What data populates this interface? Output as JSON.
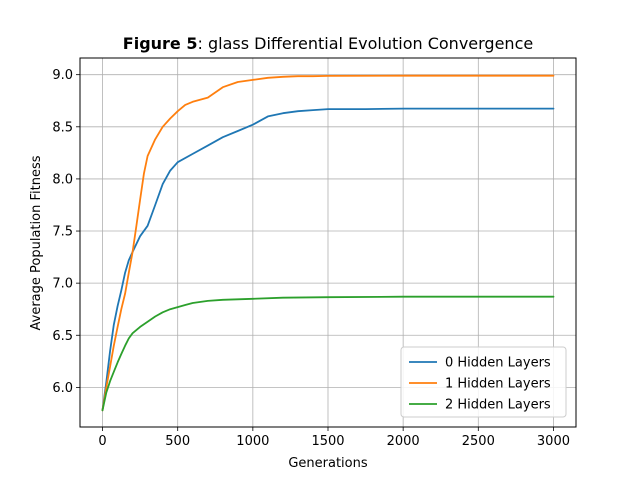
{
  "chart_data": {
    "type": "line",
    "title_bold": "Figure 5",
    "title_rest": ": glass Differential Evolution Convergence",
    "xlabel": "Generations",
    "ylabel": "Average Population Fitness",
    "xlim": [
      -150,
      3150
    ],
    "ylim": [
      5.62,
      9.16
    ],
    "xticks": [
      0,
      500,
      1000,
      1500,
      2000,
      2500,
      3000
    ],
    "yticks": [
      6.0,
      6.5,
      7.0,
      7.5,
      8.0,
      8.5,
      9.0
    ],
    "xtick_labels": [
      "0",
      "500",
      "1000",
      "1500",
      "2000",
      "2500",
      "3000"
    ],
    "ytick_labels": [
      "6.0",
      "6.5",
      "7.0",
      "7.5",
      "8.0",
      "8.5",
      "9.0"
    ],
    "grid": true,
    "legend_position": "lower right",
    "series": [
      {
        "name": "0 Hidden Layers",
        "color": "#1f77b4",
        "x": [
          0,
          25,
          50,
          75,
          100,
          125,
          150,
          175,
          200,
          250,
          300,
          350,
          400,
          450,
          500,
          600,
          700,
          800,
          900,
          1000,
          1100,
          1200,
          1300,
          1400,
          1500,
          1750,
          2000,
          2500,
          3000
        ],
        "y": [
          5.78,
          6.05,
          6.35,
          6.6,
          6.78,
          6.93,
          7.1,
          7.22,
          7.3,
          7.45,
          7.55,
          7.75,
          7.95,
          8.08,
          8.16,
          8.24,
          8.32,
          8.4,
          8.46,
          8.52,
          8.6,
          8.63,
          8.65,
          8.66,
          8.67,
          8.67,
          8.675,
          8.675,
          8.675
        ]
      },
      {
        "name": "1 Hidden Layers",
        "color": "#ff7f0e",
        "x": [
          0,
          25,
          50,
          75,
          100,
          125,
          150,
          175,
          200,
          225,
          250,
          275,
          300,
          350,
          400,
          450,
          500,
          550,
          600,
          700,
          800,
          900,
          1000,
          1100,
          1200,
          1300,
          1400,
          1500,
          2000,
          2500,
          3000
        ],
        "y": [
          5.78,
          6.0,
          6.2,
          6.4,
          6.58,
          6.75,
          6.9,
          7.1,
          7.3,
          7.55,
          7.8,
          8.05,
          8.22,
          8.38,
          8.5,
          8.58,
          8.65,
          8.71,
          8.74,
          8.78,
          8.88,
          8.93,
          8.95,
          8.97,
          8.98,
          8.985,
          8.985,
          8.988,
          8.99,
          8.99,
          8.99
        ]
      },
      {
        "name": "2 Hidden Layers",
        "color": "#2ca02c",
        "x": [
          0,
          25,
          50,
          75,
          100,
          125,
          150,
          175,
          200,
          250,
          300,
          350,
          400,
          450,
          500,
          550,
          600,
          700,
          800,
          1000,
          1200,
          1500,
          2000,
          2500,
          3000
        ],
        "y": [
          5.78,
          5.95,
          6.06,
          6.15,
          6.24,
          6.32,
          6.4,
          6.47,
          6.52,
          6.58,
          6.63,
          6.68,
          6.72,
          6.75,
          6.77,
          6.79,
          6.81,
          6.83,
          6.84,
          6.85,
          6.86,
          6.865,
          6.87,
          6.87,
          6.87
        ]
      }
    ]
  }
}
